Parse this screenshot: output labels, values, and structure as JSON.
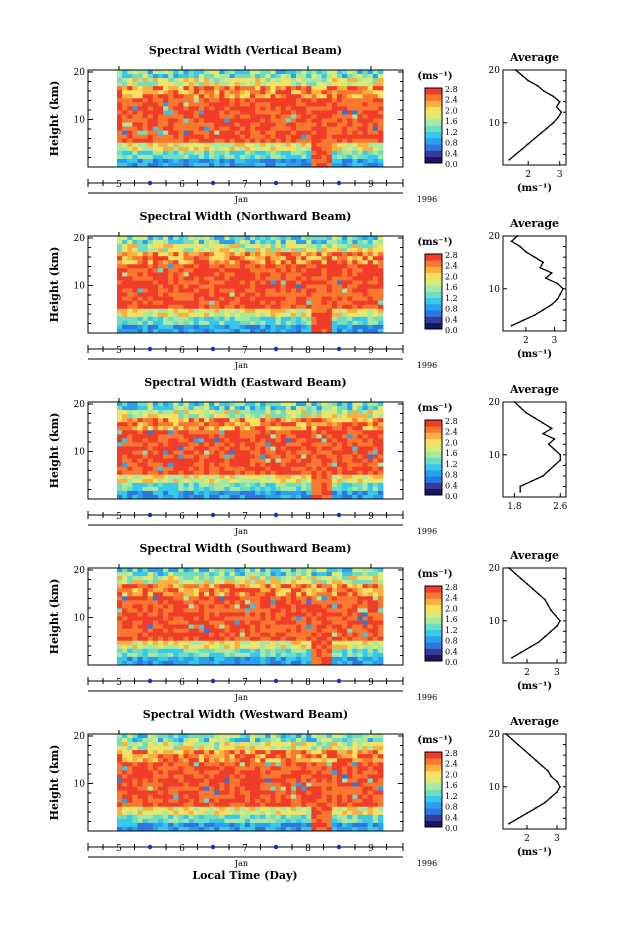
{
  "figure": {
    "xlabel": "Local Time (Day)",
    "month": "Jan",
    "year": "1996"
  },
  "palette": [
    "#1a1464",
    "#3a3a9a",
    "#2c78e0",
    "#2aa0f0",
    "#38c8ec",
    "#70dcc0",
    "#a8e8a0",
    "#d8ec78",
    "#f8e060",
    "#f8b040",
    "#f87830",
    "#f03c28"
  ],
  "chart_data": [
    {
      "type": "heatmap",
      "title": "Spectral Width (Vertical Beam)",
      "xlabel": "Jan",
      "ylabel": "Height (km)",
      "x_ticks": [
        "5",
        "6",
        "7",
        "8",
        "9"
      ],
      "y_ticks": [
        "10",
        "20"
      ],
      "colorbar": {
        "unit": "(ms⁻¹)",
        "ticks": [
          "0.0",
          "0.4",
          "0.8",
          "1.2",
          "1.6",
          "2.0",
          "2.4",
          "2.8"
        ],
        "range": [
          0.0,
          2.8
        ]
      },
      "profile": {
        "title": "Average",
        "xlabel": "(ms⁻¹)",
        "x_ticks": [
          "2",
          "3"
        ],
        "xlim": [
          1.2,
          3.2
        ],
        "ylim": [
          2,
          20
        ],
        "y_ticks": [
          "10",
          "20"
        ],
        "values": [
          [
            1.4,
            3
          ],
          [
            1.6,
            4
          ],
          [
            1.8,
            5
          ],
          [
            2.0,
            6
          ],
          [
            2.2,
            7
          ],
          [
            2.4,
            8
          ],
          [
            2.6,
            9
          ],
          [
            2.8,
            10
          ],
          [
            2.95,
            11
          ],
          [
            3.05,
            12
          ],
          [
            2.9,
            13
          ],
          [
            3.0,
            14
          ],
          [
            2.8,
            15
          ],
          [
            2.5,
            16
          ],
          [
            2.3,
            17
          ],
          [
            2.0,
            18
          ],
          [
            1.8,
            19
          ],
          [
            1.6,
            20
          ]
        ]
      }
    },
    {
      "type": "heatmap",
      "title": "Spectral Width (Northward Beam)",
      "xlabel": "Jan",
      "ylabel": "Height (km)",
      "x_ticks": [
        "5",
        "6",
        "7",
        "8",
        "9"
      ],
      "y_ticks": [
        "10",
        "20"
      ],
      "colorbar": {
        "unit": "(ms⁻¹)",
        "ticks": [
          "0.0",
          "0.4",
          "0.8",
          "1.2",
          "1.6",
          "2.0",
          "2.4",
          "2.8"
        ],
        "range": [
          0.0,
          2.8
        ]
      },
      "profile": {
        "title": "Average",
        "xlabel": "(ms⁻¹)",
        "x_ticks": [
          "2",
          "3"
        ],
        "xlim": [
          1.2,
          3.4
        ],
        "ylim": [
          2,
          20
        ],
        "y_ticks": [
          "10",
          "20"
        ],
        "values": [
          [
            1.5,
            3
          ],
          [
            1.9,
            4
          ],
          [
            2.3,
            5
          ],
          [
            2.6,
            6
          ],
          [
            2.9,
            7
          ],
          [
            3.1,
            8
          ],
          [
            3.2,
            9
          ],
          [
            3.3,
            10
          ],
          [
            3.1,
            11
          ],
          [
            2.7,
            12
          ],
          [
            2.9,
            13
          ],
          [
            2.5,
            14
          ],
          [
            2.6,
            15
          ],
          [
            2.3,
            16
          ],
          [
            2.0,
            17
          ],
          [
            1.8,
            18
          ],
          [
            1.5,
            19
          ],
          [
            1.7,
            20
          ]
        ]
      }
    },
    {
      "type": "heatmap",
      "title": "Spectral Width (Eastward Beam)",
      "xlabel": "Jan",
      "ylabel": "Height (km)",
      "x_ticks": [
        "5",
        "6",
        "7",
        "8",
        "9"
      ],
      "y_ticks": [
        "10",
        "20"
      ],
      "colorbar": {
        "unit": "(ms⁻¹)",
        "ticks": [
          "0.0",
          "0.4",
          "0.8",
          "1.2",
          "1.6",
          "2.0",
          "2.4",
          "2.8"
        ],
        "range": [
          0.0,
          2.8
        ]
      },
      "profile": {
        "title": "Average",
        "xlabel": "",
        "x_ticks": [
          "1.8",
          "2.6"
        ],
        "xlim": [
          1.6,
          2.7
        ],
        "ylim": [
          2,
          20
        ],
        "y_ticks": [
          "10",
          "20"
        ],
        "values": [
          [
            1.9,
            3
          ],
          [
            1.9,
            4
          ],
          [
            2.1,
            5
          ],
          [
            2.3,
            6
          ],
          [
            2.4,
            7
          ],
          [
            2.5,
            8
          ],
          [
            2.6,
            9
          ],
          [
            2.6,
            10
          ],
          [
            2.5,
            11
          ],
          [
            2.4,
            12
          ],
          [
            2.5,
            13
          ],
          [
            2.3,
            14
          ],
          [
            2.45,
            15
          ],
          [
            2.3,
            16
          ],
          [
            2.15,
            17
          ],
          [
            2.0,
            18
          ],
          [
            1.9,
            19
          ],
          [
            1.8,
            20
          ]
        ]
      }
    },
    {
      "type": "heatmap",
      "title": "Spectral Width (Southward Beam)",
      "xlabel": "Jan",
      "ylabel": "Height (km)",
      "x_ticks": [
        "5",
        "6",
        "7",
        "8",
        "9"
      ],
      "y_ticks": [
        "10",
        "20"
      ],
      "colorbar": {
        "unit": "(ms⁻¹)",
        "ticks": [
          "0.0",
          "0.4",
          "0.8",
          "1.2",
          "1.6",
          "2.0",
          "2.4",
          "2.8"
        ],
        "range": [
          0.0,
          2.8
        ]
      },
      "profile": {
        "title": "Average",
        "xlabel": "(ms⁻¹)",
        "x_ticks": [
          "2",
          "3"
        ],
        "xlim": [
          1.2,
          3.3
        ],
        "ylim": [
          2,
          20
        ],
        "y_ticks": [
          "10",
          "20"
        ],
        "values": [
          [
            1.5,
            3
          ],
          [
            1.8,
            4
          ],
          [
            2.1,
            5
          ],
          [
            2.4,
            6
          ],
          [
            2.6,
            7
          ],
          [
            2.8,
            8
          ],
          [
            3.0,
            9
          ],
          [
            3.1,
            10
          ],
          [
            2.95,
            11
          ],
          [
            2.8,
            12
          ],
          [
            2.7,
            13
          ],
          [
            2.6,
            14
          ],
          [
            2.4,
            15
          ],
          [
            2.2,
            16
          ],
          [
            2.0,
            17
          ],
          [
            1.8,
            18
          ],
          [
            1.6,
            19
          ],
          [
            1.4,
            20
          ]
        ]
      }
    },
    {
      "type": "heatmap",
      "title": "Spectral Width (Westward Beam)",
      "xlabel": "Jan",
      "ylabel": "Height (km)",
      "x_ticks": [
        "5",
        "6",
        "7",
        "8",
        "9"
      ],
      "y_ticks": [
        "10",
        "20"
      ],
      "colorbar": {
        "unit": "(ms⁻¹)",
        "ticks": [
          "0.0",
          "0.4",
          "0.8",
          "1.2",
          "1.6",
          "2.0",
          "2.4",
          "2.8"
        ],
        "range": [
          0.0,
          2.8
        ]
      },
      "profile": {
        "title": "Average",
        "xlabel": "(ms⁻¹)",
        "x_ticks": [
          "2",
          "3"
        ],
        "xlim": [
          1.2,
          3.3
        ],
        "ylim": [
          2,
          20
        ],
        "y_ticks": [
          "10",
          "20"
        ],
        "values": [
          [
            1.4,
            3
          ],
          [
            1.7,
            4
          ],
          [
            2.0,
            5
          ],
          [
            2.3,
            6
          ],
          [
            2.6,
            7
          ],
          [
            2.8,
            8
          ],
          [
            3.0,
            9
          ],
          [
            3.1,
            10
          ],
          [
            3.0,
            11
          ],
          [
            2.8,
            12
          ],
          [
            2.7,
            13
          ],
          [
            2.5,
            14
          ],
          [
            2.3,
            15
          ],
          [
            2.1,
            16
          ],
          [
            1.9,
            17
          ],
          [
            1.7,
            18
          ],
          [
            1.5,
            19
          ],
          [
            1.3,
            20
          ]
        ]
      }
    }
  ]
}
